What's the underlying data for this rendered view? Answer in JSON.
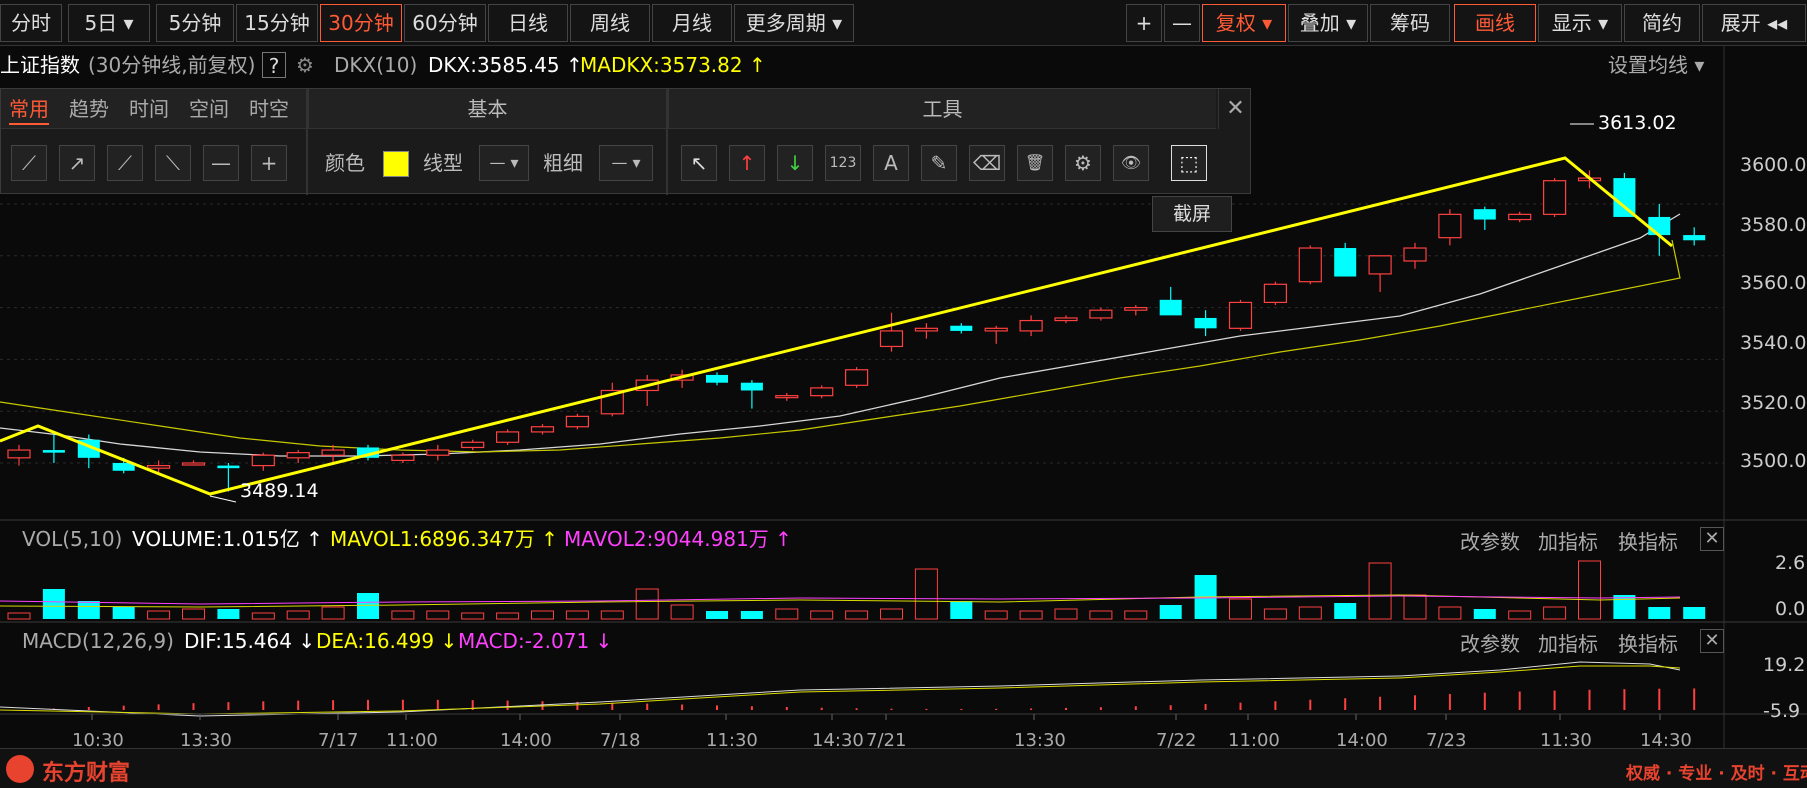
{
  "topbar": {
    "periods": [
      "分时",
      "5日 ▾",
      "5分钟",
      "15分钟",
      "30分钟",
      "60分钟",
      "日线",
      "周线",
      "月线",
      "更多周期 ▾"
    ],
    "active_period": "30分钟",
    "tools": [
      "+",
      "—",
      "复权 ▾",
      "叠加 ▾",
      "筹码",
      "画线",
      "显示 ▾",
      "简约",
      "展开 ◂◂"
    ]
  },
  "header": {
    "index_name": "上证指数",
    "chart_mode": "(30分钟线,前复权)",
    "help": "?",
    "indicator": "DKX(10)",
    "dkx": "DKX:3585.45 ↑",
    "madkx": "MADKX:3573.82 ↑",
    "set_ma": "设置均线 ▾"
  },
  "drawtool": {
    "tabs": [
      "常用",
      "趋势",
      "时间",
      "空间",
      "时空"
    ],
    "section_basic": "基本",
    "section_tools": "工具",
    "color_label": "颜色",
    "linetype_label": "线型",
    "thickness_label": "粗细",
    "line_icons": [
      "⟋",
      "↗",
      "⟋",
      "⟍",
      "—",
      "+"
    ],
    "tool_icons": [
      "↖",
      "↑",
      "↓",
      "123",
      "A",
      "✎",
      "⌫",
      "🗑",
      "⚙",
      "👁",
      "⬚"
    ],
    "tooltip": "截屏",
    "color_value": "#ffff00",
    "close": "✕"
  },
  "price_axis": {
    "labels": [
      "3600.00",
      "3580.00",
      "3560.00",
      "3540.00",
      "3520.00",
      "3500.00"
    ],
    "high_label": "3613.02",
    "low_label": "3489.14"
  },
  "volume": {
    "name": "VOL(5,10)",
    "volume": "VOLUME:1.015亿 ↑",
    "mavol1": "MAVOL1:6896.347万 ↑",
    "mavol2": "MAVOL2:9044.981万 ↑",
    "axis": [
      "2.6",
      "0.0"
    ],
    "actions": [
      "改参数",
      "加指标",
      "换指标"
    ]
  },
  "macd": {
    "name": "MACD(12,26,9)",
    "dif": "DIF:15.464 ↓",
    "dea": "DEA:16.499 ↓",
    "macd": "MACD:-2.071 ↓",
    "axis": [
      "19.2",
      "-5.9"
    ],
    "actions": [
      "改参数",
      "加指标",
      "换指标"
    ]
  },
  "time_axis": [
    "10:30",
    "13:30",
    "7/17",
    "11:00",
    "14:00",
    "7/18",
    "11:30",
    "14:30",
    "7/21",
    "13:30",
    "7/22",
    "11:00",
    "14:00",
    "7/23",
    "11:30",
    "14:30"
  ],
  "footer": {
    "brand": "东方财富",
    "slogan": "权威 · 专业 · 及时 · 互动"
  },
  "chart_data": {
    "type": "candlestick",
    "title": "",
    "ylim": [
      3480,
      3620
    ],
    "up_color": "#ff4040",
    "down_color": "#00ffff",
    "candles": [
      [
        3502,
        3507,
        3499,
        3505
      ],
      [
        3505,
        3511,
        3500,
        3504
      ],
      [
        3509,
        3511,
        3498,
        3502
      ],
      [
        3500,
        3502,
        3496,
        3497
      ],
      [
        3498,
        3501,
        3496,
        3499
      ],
      [
        3500,
        3501,
        3499,
        3500
      ],
      [
        3499,
        3500,
        3489,
        3498
      ],
      [
        3499,
        3504,
        3497,
        3503
      ],
      [
        3502,
        3505,
        3500,
        3504
      ],
      [
        3503,
        3507,
        3500,
        3505
      ],
      [
        3506,
        3507,
        3501,
        3502
      ],
      [
        3501,
        3504,
        3500,
        3503
      ],
      [
        3503,
        3507,
        3501,
        3505
      ],
      [
        3506,
        3509,
        3505,
        3508
      ],
      [
        3508,
        3513,
        3507,
        3512
      ],
      [
        3512,
        3515,
        3511,
        3514
      ],
      [
        3514,
        3519,
        3513,
        3518
      ],
      [
        3519,
        3531,
        3518,
        3528
      ],
      [
        3528,
        3534,
        3522,
        3532
      ],
      [
        3532,
        3536,
        3529,
        3534
      ],
      [
        3534,
        3535,
        3530,
        3531
      ],
      [
        3531,
        3532,
        3521,
        3528
      ],
      [
        3526,
        3527,
        3524,
        3526
      ],
      [
        3526,
        3530,
        3525,
        3529
      ],
      [
        3530,
        3537,
        3529,
        3536
      ],
      [
        3545,
        3558,
        3543,
        3551
      ],
      [
        3551,
        3554,
        3548,
        3552
      ],
      [
        3553,
        3554,
        3550,
        3551
      ],
      [
        3551,
        3553,
        3546,
        3552
      ],
      [
        3551,
        3557,
        3549,
        3555
      ],
      [
        3555,
        3557,
        3554,
        3556
      ],
      [
        3556,
        3560,
        3555,
        3559
      ],
      [
        3559,
        3561,
        3557,
        3560
      ],
      [
        3563,
        3568,
        3558,
        3557
      ],
      [
        3556,
        3559,
        3549,
        3552
      ],
      [
        3552,
        3563,
        3551,
        3562
      ],
      [
        3562,
        3570,
        3561,
        3569
      ],
      [
        3570,
        3584,
        3569,
        3583
      ],
      [
        3583,
        3585,
        3572,
        3572
      ],
      [
        3573,
        3579,
        3566,
        3580
      ],
      [
        3578,
        3585,
        3575,
        3583
      ],
      [
        3587,
        3598,
        3584,
        3596
      ],
      [
        3598,
        3599,
        3590,
        3594
      ],
      [
        3594,
        3597,
        3593,
        3596
      ],
      [
        3596,
        3610,
        3595,
        3609
      ],
      [
        3609,
        3613,
        3606,
        3610
      ],
      [
        3610,
        3612,
        3595,
        3595
      ],
      [
        3595,
        3600,
        3580,
        3588
      ],
      [
        3588,
        3591,
        3584,
        3586
      ]
    ]
  }
}
